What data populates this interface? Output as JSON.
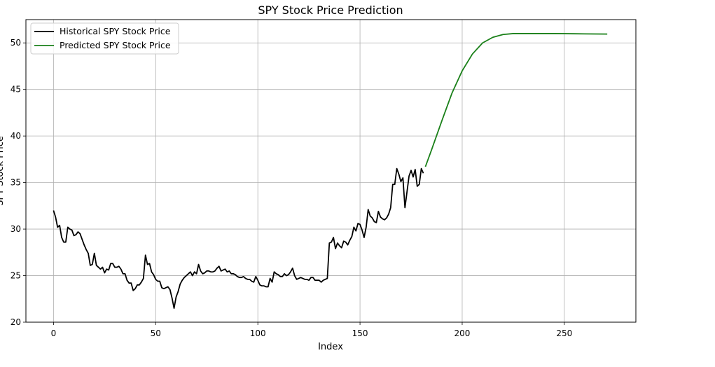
{
  "chart_data": {
    "type": "line",
    "title": "SPY Stock Price Prediction",
    "xlabel": "Index",
    "ylabel": "SPY Stock Price",
    "xlim": [
      -13.5,
      285
    ],
    "ylim": [
      20,
      52.5
    ],
    "xticks": [
      0,
      50,
      100,
      150,
      200,
      250
    ],
    "yticks": [
      20,
      25,
      30,
      35,
      40,
      45,
      50
    ],
    "grid": true,
    "legend_position": "upper-left",
    "series": [
      {
        "name": "Historical SPY Stock Price",
        "color": "#000000",
        "x_start": 0,
        "values": [
          32.0,
          31.3,
          30.2,
          30.4,
          29.1,
          28.6,
          28.6,
          30.2,
          30.0,
          29.9,
          29.3,
          29.4,
          29.7,
          29.5,
          28.9,
          28.3,
          27.8,
          27.4,
          26.1,
          26.2,
          27.4,
          26.1,
          25.9,
          25.7,
          25.9,
          25.3,
          25.7,
          25.6,
          26.3,
          26.3,
          25.9,
          25.9,
          26.0,
          25.7,
          25.2,
          25.2,
          24.5,
          24.2,
          24.2,
          23.4,
          23.6,
          24.0,
          24.0,
          24.3,
          24.7,
          27.2,
          26.2,
          26.3,
          25.4,
          25.1,
          24.6,
          24.4,
          24.4,
          23.7,
          23.6,
          23.7,
          23.8,
          23.5,
          22.6,
          21.5,
          22.7,
          23.3,
          24.1,
          24.5,
          24.8,
          25.0,
          25.2,
          25.4,
          25.0,
          25.4,
          25.2,
          26.2,
          25.5,
          25.2,
          25.3,
          25.5,
          25.5,
          25.4,
          25.4,
          25.5,
          25.8,
          26.0,
          25.5,
          25.6,
          25.7,
          25.4,
          25.5,
          25.2,
          25.2,
          25.1,
          24.9,
          24.8,
          24.8,
          24.9,
          24.7,
          24.6,
          24.6,
          24.4,
          24.3,
          24.9,
          24.5,
          24.0,
          23.9,
          23.9,
          23.8,
          23.8,
          24.7,
          24.3,
          25.4,
          25.2,
          25.1,
          24.9,
          24.9,
          25.2,
          25.0,
          25.1,
          25.4,
          25.8,
          25.0,
          24.6,
          24.7,
          24.8,
          24.7,
          24.6,
          24.6,
          24.5,
          24.8,
          24.8,
          24.5,
          24.5,
          24.5,
          24.3,
          24.5,
          24.6,
          24.7,
          28.5,
          28.6,
          29.1,
          27.9,
          28.5,
          28.2,
          28.0,
          28.7,
          28.6,
          28.3,
          28.8,
          29.2,
          30.2,
          29.8,
          30.6,
          30.5,
          29.9,
          29.1,
          30.2,
          32.1,
          31.4,
          31.2,
          30.8,
          30.7,
          31.9,
          31.3,
          31.1,
          31.0,
          31.2,
          31.6,
          32.3,
          34.8,
          34.8,
          36.5,
          35.9,
          35.1,
          35.5,
          32.3,
          34.0,
          35.7,
          36.3,
          35.6,
          36.4,
          34.6,
          34.8,
          36.5,
          36.0
        ]
      },
      {
        "name": "Predicted SPY Stock Price",
        "color": "#1a8019",
        "x": [
          182,
          185,
          190,
          195,
          200,
          205,
          210,
          215,
          220,
          225,
          230,
          235,
          240,
          245,
          250,
          255,
          260,
          265,
          271
        ],
        "values": [
          36.7,
          38.5,
          41.6,
          44.6,
          47.0,
          48.8,
          50.0,
          50.6,
          50.9,
          51.0,
          51.0,
          51.0,
          51.0,
          51.0,
          50.99,
          50.98,
          50.97,
          50.96,
          50.95
        ]
      }
    ]
  }
}
